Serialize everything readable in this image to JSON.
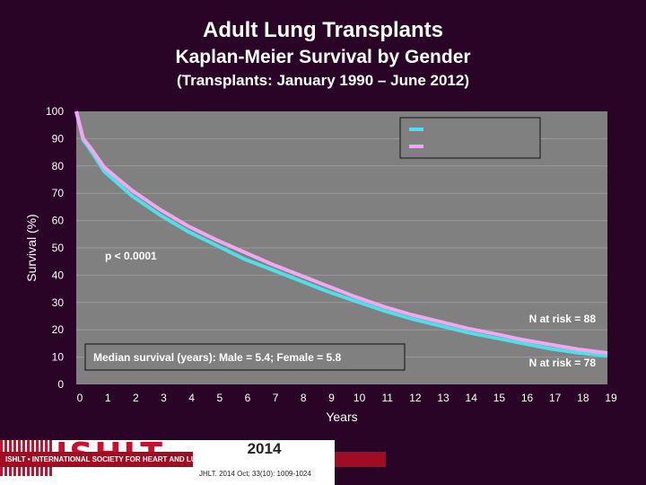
{
  "header": {
    "title": "Adult Lung Transplants",
    "subtitle": "Kaplan-Meier Survival by Gender",
    "subtitle2": "(Transplants: January 1990 – June 2012)"
  },
  "colors": {
    "background": "#2a0426",
    "plot_background": "#808080",
    "male_line": "#4ee0e8",
    "female_line": "#f2a8f0",
    "text": "#ffffff"
  },
  "chart_data": {
    "type": "line",
    "title": "Adult Lung Transplants",
    "xlabel": "Years",
    "ylabel": "Survival (%)",
    "xlim": [
      0,
      19
    ],
    "ylim": [
      0,
      100
    ],
    "x_ticks": [
      "0",
      "1",
      "2",
      "3",
      "4",
      "5",
      "6",
      "7",
      "8",
      "9",
      "10",
      "11",
      "12",
      "13",
      "14",
      "15",
      "16",
      "17",
      "18",
      "19"
    ],
    "y_ticks": [
      "0",
      "10",
      "20",
      "30",
      "40",
      "50",
      "60",
      "70",
      "80",
      "90",
      "100"
    ],
    "grid": true,
    "legend": {
      "placement": "top-right",
      "labels_visible": false
    },
    "series": [
      {
        "color": "#4ee0e8",
        "x": [
          0,
          0.25,
          0.5,
          1,
          2,
          3,
          4,
          5,
          6,
          7,
          8,
          9,
          10,
          11,
          12,
          13,
          14,
          15,
          16,
          17,
          18,
          19
        ],
        "y": [
          100,
          89.5,
          86,
          78,
          69,
          62,
          56,
          51,
          46,
          42,
          38,
          34,
          30.5,
          27,
          24,
          21.5,
          19,
          17,
          15,
          13,
          11.5,
          10.5
        ]
      },
      {
        "color": "#f2a8f0",
        "x": [
          0,
          0.25,
          0.5,
          1,
          2,
          3,
          4,
          5,
          6,
          7,
          8,
          9,
          10,
          11,
          12,
          13,
          14,
          15,
          16,
          17,
          18,
          19
        ],
        "y": [
          100,
          90,
          86.8,
          79.5,
          71,
          64,
          58,
          53,
          48.5,
          44,
          40,
          36,
          32,
          28.5,
          25.5,
          23,
          20.5,
          18.5,
          16.3,
          14.5,
          12.8,
          11.5
        ]
      }
    ],
    "annotations": {
      "p_value": "p < 0.0001",
      "median": "Median survival (years): Male = 5.4; Female = 5.8",
      "n_risk_top": "N at risk = 88",
      "n_risk_bottom": "N at risk = 78"
    }
  },
  "footer": {
    "logo_text": "ISHLT",
    "logo_band": "ISHLT • INTERNATIONAL SOCIETY FOR HEART AND LUNG TRANSPLANTATION",
    "year": "2014",
    "citation": "JHLT. 2014 Oct; 33(10): 1009-1024"
  }
}
